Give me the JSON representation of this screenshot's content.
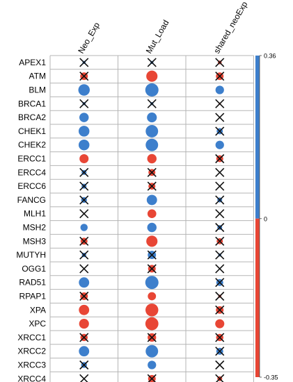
{
  "chart_data": {
    "type": "heatmap",
    "columns": [
      "Neo_Exp",
      "Mut_Load",
      "shared_neoExp"
    ],
    "rows": [
      "APEX1",
      "ATM",
      "BLM",
      "BRCA1",
      "BRCA2",
      "CHEK1",
      "CHEK2",
      "ERCC1",
      "ERCC4",
      "ERCC6",
      "FANCG",
      "MLH1",
      "MSH2",
      "MSH3",
      "MUTYH",
      "OGG1",
      "RAD51",
      "RPAP1",
      "XPA",
      "XPC",
      "XRCC1",
      "XRCC2",
      "XRCC3",
      "XRCC4"
    ],
    "values": [
      [
        0.02,
        0.02,
        -0.03
      ],
      [
        -0.12,
        -0.26,
        -0.12
      ],
      [
        0.27,
        0.36,
        0.15
      ],
      [
        0.02,
        0.02,
        -0.01
      ],
      [
        0.18,
        0.2,
        0.0
      ],
      [
        0.24,
        0.32,
        0.08
      ],
      [
        0.24,
        0.32,
        0.15
      ],
      [
        -0.17,
        -0.18,
        -0.1
      ],
      [
        0.05,
        -0.1,
        0.0
      ],
      [
        0.05,
        -0.1,
        0.0
      ],
      [
        0.07,
        0.22,
        0.05
      ],
      [
        0.0,
        -0.16,
        0.0
      ],
      [
        0.11,
        0.18,
        0.05
      ],
      [
        -0.1,
        -0.26,
        -0.08
      ],
      [
        0.04,
        0.14,
        0.02
      ],
      [
        0.0,
        -0.12,
        0.0
      ],
      [
        0.22,
        0.36,
        0.1
      ],
      [
        -0.12,
        -0.14,
        -0.02
      ],
      [
        -0.22,
        -0.34,
        -0.12
      ],
      [
        -0.2,
        -0.35,
        -0.17
      ],
      [
        -0.11,
        -0.15,
        -0.11
      ],
      [
        0.22,
        0.32,
        0.1
      ],
      [
        0.07,
        0.15,
        0.0
      ],
      [
        0.0,
        -0.12,
        -0.05
      ]
    ],
    "crossed": [
      [
        true,
        true,
        true
      ],
      [
        true,
        false,
        true
      ],
      [
        false,
        false,
        false
      ],
      [
        true,
        true,
        true
      ],
      [
        false,
        false,
        true
      ],
      [
        false,
        false,
        true
      ],
      [
        false,
        false,
        false
      ],
      [
        false,
        false,
        true
      ],
      [
        true,
        true,
        true
      ],
      [
        true,
        true,
        true
      ],
      [
        true,
        false,
        true
      ],
      [
        true,
        false,
        true
      ],
      [
        false,
        false,
        true
      ],
      [
        true,
        false,
        true
      ],
      [
        true,
        true,
        true
      ],
      [
        true,
        true,
        true
      ],
      [
        false,
        false,
        true
      ],
      [
        true,
        false,
        true
      ],
      [
        false,
        false,
        true
      ],
      [
        false,
        false,
        false
      ],
      [
        true,
        true,
        true
      ],
      [
        false,
        false,
        true
      ],
      [
        true,
        false,
        true
      ],
      [
        true,
        true,
        true
      ]
    ],
    "colorbar": {
      "max_label": "0.36",
      "mid_label": "0",
      "min_label": "-0.35",
      "max": 0.36,
      "min": -0.35
    },
    "colors": {
      "positive": "#3d7fcc",
      "negative": "#e84635",
      "grid": "#b5b5b5",
      "cross": "#111111"
    },
    "legend_position": "right",
    "grid": true
  }
}
